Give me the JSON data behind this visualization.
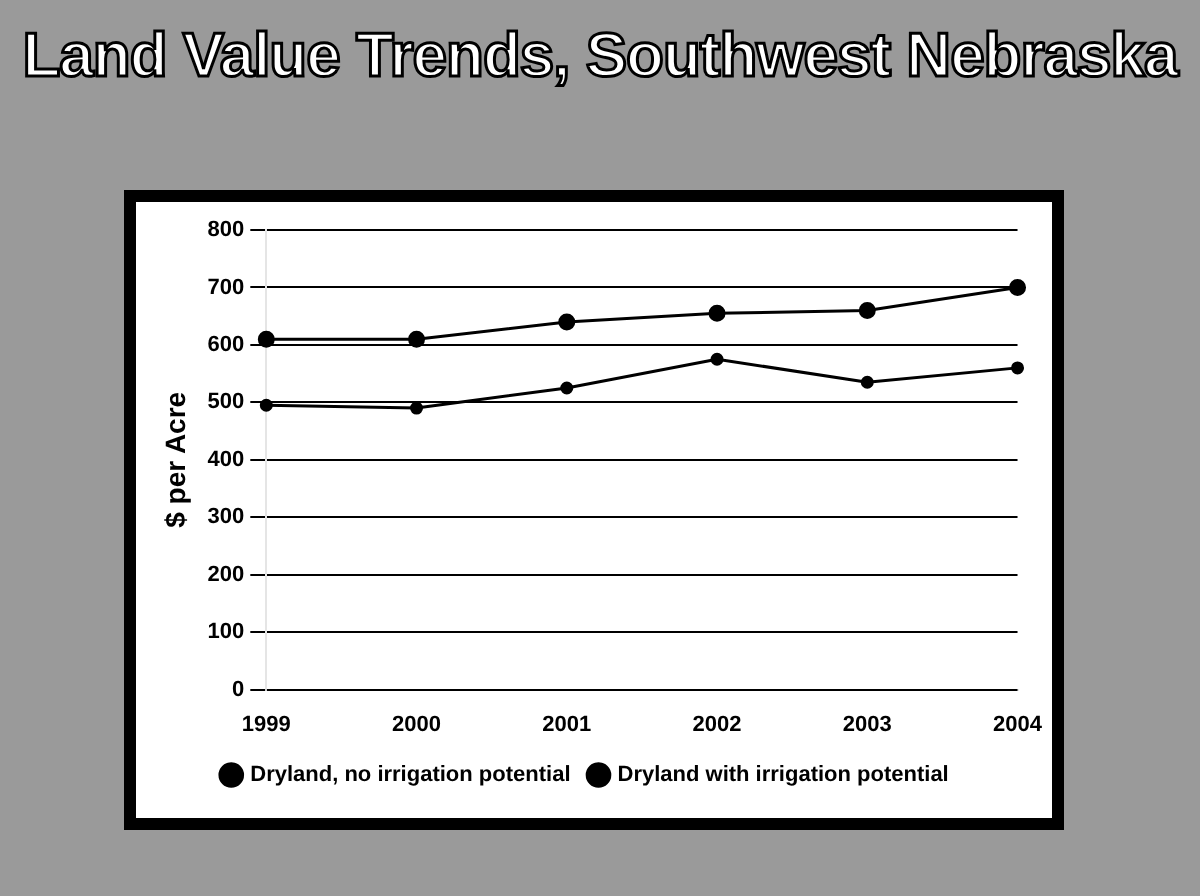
{
  "chart_data": {
    "type": "line",
    "title": "Land Value Trends, Southwest Nebraska",
    "ylabel": "$ per Acre",
    "categories": [
      "1999",
      "2000",
      "2001",
      "2002",
      "2003",
      "2004"
    ],
    "series": [
      {
        "name": "Dryland, no irrigation potential",
        "color": "#000000",
        "values": [
          495,
          490,
          525,
          575,
          535,
          560
        ]
      },
      {
        "name": "Dryland with irrigation potential",
        "color": "#000000",
        "values": [
          610,
          610,
          640,
          655,
          660,
          700
        ]
      }
    ],
    "ylim": [
      0,
      800
    ],
    "yticks": [
      0,
      100,
      200,
      300,
      400,
      500,
      600,
      700,
      800
    ],
    "grid": "y",
    "legend": "bottom",
    "marker": "circle",
    "line_style": "solid"
  }
}
